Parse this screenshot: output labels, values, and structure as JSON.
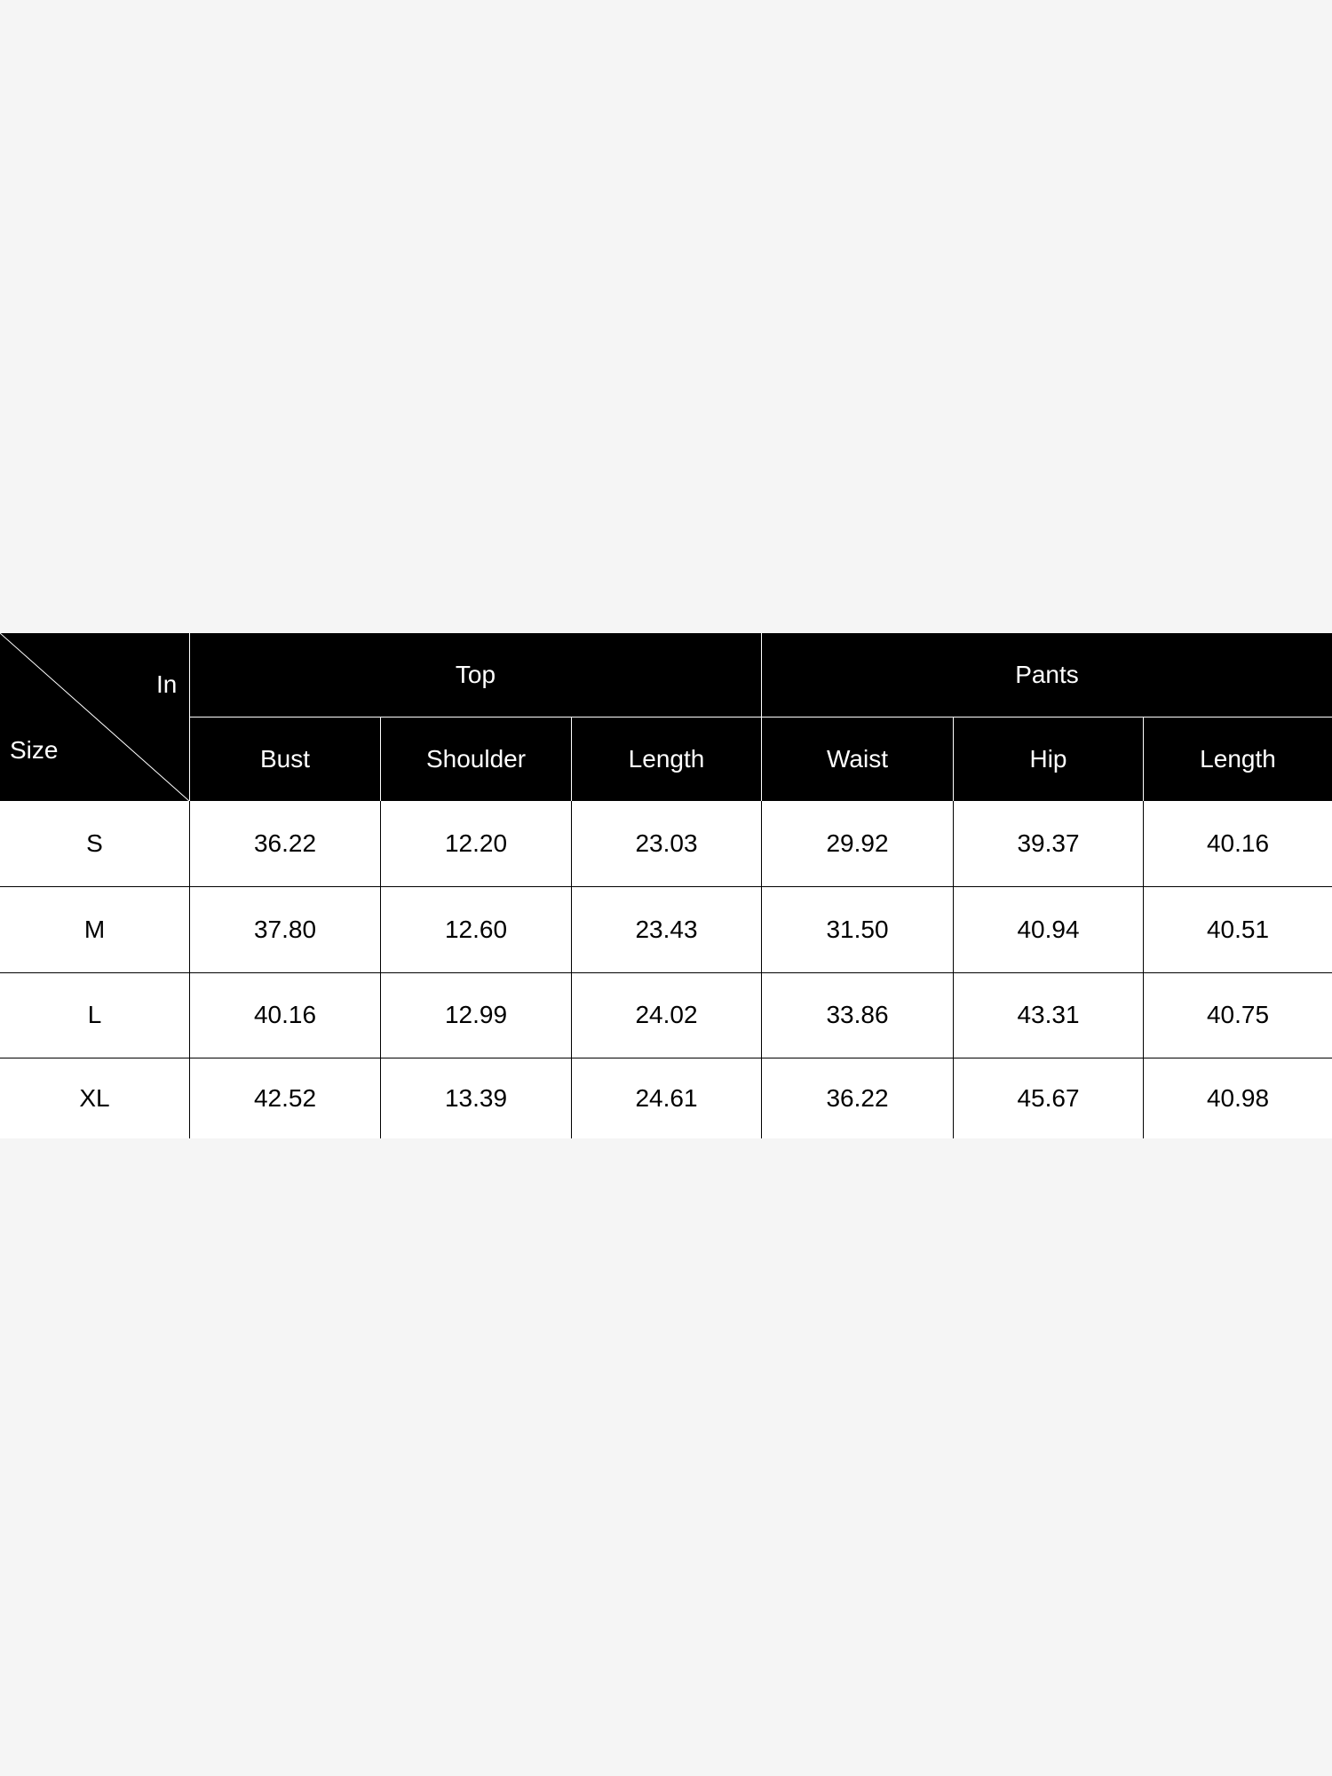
{
  "corner": {
    "unit_label": "In",
    "size_label": "Size"
  },
  "groups": [
    {
      "label": "Top"
    },
    {
      "label": "Pants"
    }
  ],
  "columns": [
    "Bust",
    "Shoulder",
    "Length",
    "Waist",
    "Hip",
    "Length"
  ],
  "rows": [
    {
      "size": "S",
      "values": [
        "36.22",
        "12.20",
        "23.03",
        "29.92",
        "39.37",
        "40.16"
      ]
    },
    {
      "size": "M",
      "values": [
        "37.80",
        "12.60",
        "23.43",
        "31.50",
        "40.94",
        "40.51"
      ]
    },
    {
      "size": "L",
      "values": [
        "40.16",
        "12.99",
        "24.02",
        "33.86",
        "43.31",
        "40.75"
      ]
    },
    {
      "size": "XL",
      "values": [
        "42.52",
        "13.39",
        "24.61",
        "36.22",
        "45.67",
        "40.98"
      ]
    }
  ]
}
